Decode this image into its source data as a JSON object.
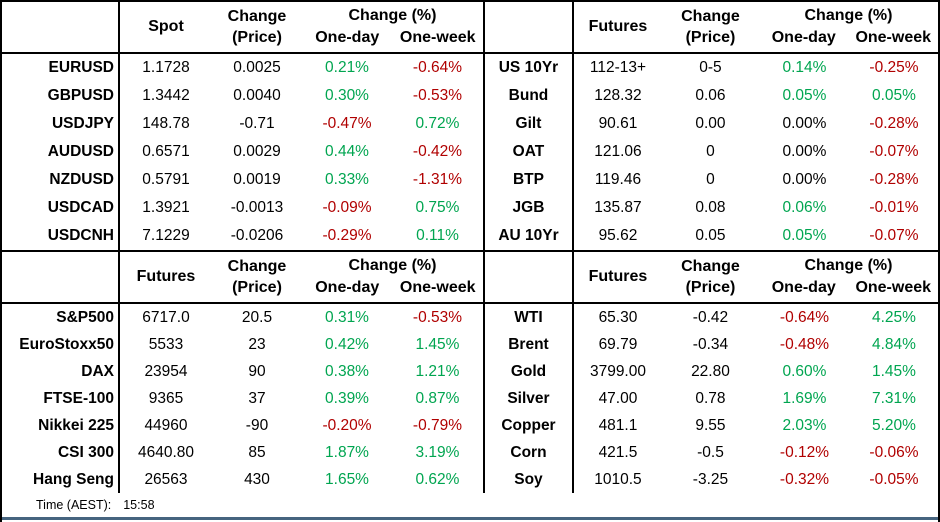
{
  "colors": {
    "positive": "#00A550",
    "negative": "#B00000",
    "neutral": "#000000",
    "bottom_rule": "#46647F",
    "grid_line": "#000000"
  },
  "footer": {
    "time_label": "Time (AEST):",
    "time_value": "15:58"
  },
  "chart_data": [
    {
      "type": "table",
      "name": "fx-spot",
      "headers": {
        "value": "Spot",
        "change_line1": "Change",
        "change_line2": "(Price)",
        "pct": "Change (%)",
        "one_day": "One-day",
        "one_week": "One-week"
      },
      "rows": [
        [
          "EURUSD",
          "1.1728",
          "0.0025",
          "0.21%",
          "-0.64%"
        ],
        [
          "GBPUSD",
          "1.3442",
          "0.0040",
          "0.30%",
          "-0.53%"
        ],
        [
          "USDJPY",
          "148.78",
          "-0.71",
          "-0.47%",
          "0.72%"
        ],
        [
          "AUDUSD",
          "0.6571",
          "0.0029",
          "0.44%",
          "-0.42%"
        ],
        [
          "NZDUSD",
          "0.5791",
          "0.0019",
          "0.33%",
          "-1.31%"
        ],
        [
          "USDCAD",
          "1.3921",
          "-0.0013",
          "-0.09%",
          "0.75%"
        ],
        [
          "USDCNH",
          "7.1229",
          "-0.0206",
          "-0.29%",
          "0.11%"
        ]
      ]
    },
    {
      "type": "table",
      "name": "bond-futures",
      "headers": {
        "value": "Futures",
        "change_line1": "Change",
        "change_line2": "(Price)",
        "pct": "Change (%)",
        "one_day": "One-day",
        "one_week": "One-week"
      },
      "rows": [
        [
          "US 10Yr",
          "112-13+",
          "0-5",
          "0.14%",
          "-0.25%"
        ],
        [
          "Bund",
          "128.32",
          "0.06",
          "0.05%",
          "0.05%"
        ],
        [
          "Gilt",
          "90.61",
          "0.00",
          "0.00%",
          "-0.28%"
        ],
        [
          "OAT",
          "121.06",
          "0",
          "0.00%",
          "-0.07%"
        ],
        [
          "BTP",
          "119.46",
          "0",
          "0.00%",
          "-0.28%"
        ],
        [
          "JGB",
          "135.87",
          "0.08",
          "0.06%",
          "-0.01%"
        ],
        [
          "AU 10Yr",
          "95.62",
          "0.05",
          "0.05%",
          "-0.07%"
        ]
      ]
    },
    {
      "type": "table",
      "name": "equity-futures",
      "headers": {
        "value": "Futures",
        "change_line1": "Change",
        "change_line2": "(Price)",
        "pct": "Change (%)",
        "one_day": "One-day",
        "one_week": "One-week"
      },
      "rows": [
        [
          "S&P500",
          "6717.0",
          "20.5",
          "0.31%",
          "-0.53%"
        ],
        [
          "EuroStoxx50",
          "5533",
          "23",
          "0.42%",
          "1.45%"
        ],
        [
          "DAX",
          "23954",
          "90",
          "0.38%",
          "1.21%"
        ],
        [
          "FTSE-100",
          "9365",
          "37",
          "0.39%",
          "0.87%"
        ],
        [
          "Nikkei 225",
          "44960",
          "-90",
          "-0.20%",
          "-0.79%"
        ],
        [
          "CSI 300",
          "4640.80",
          "85",
          "1.87%",
          "3.19%"
        ],
        [
          "Hang Seng",
          "26563",
          "430",
          "1.65%",
          "0.62%"
        ]
      ]
    },
    {
      "type": "table",
      "name": "commodity-futures",
      "headers": {
        "value": "Futures",
        "change_line1": "Change",
        "change_line2": "(Price)",
        "pct": "Change (%)",
        "one_day": "One-day",
        "one_week": "One-week"
      },
      "rows": [
        [
          "WTI",
          "65.30",
          "-0.42",
          "-0.64%",
          "4.25%"
        ],
        [
          "Brent",
          "69.79",
          "-0.34",
          "-0.48%",
          "4.84%"
        ],
        [
          "Gold",
          "3799.00",
          "22.80",
          "0.60%",
          "1.45%"
        ],
        [
          "Silver",
          "47.00",
          "0.78",
          "1.69%",
          "7.31%"
        ],
        [
          "Copper",
          "481.1",
          "9.55",
          "2.03%",
          "5.20%"
        ],
        [
          "Corn",
          "421.5",
          "-0.5",
          "-0.12%",
          "-0.06%"
        ],
        [
          "Soy",
          "1010.5",
          "-3.25",
          "-0.32%",
          "-0.05%"
        ]
      ]
    }
  ]
}
